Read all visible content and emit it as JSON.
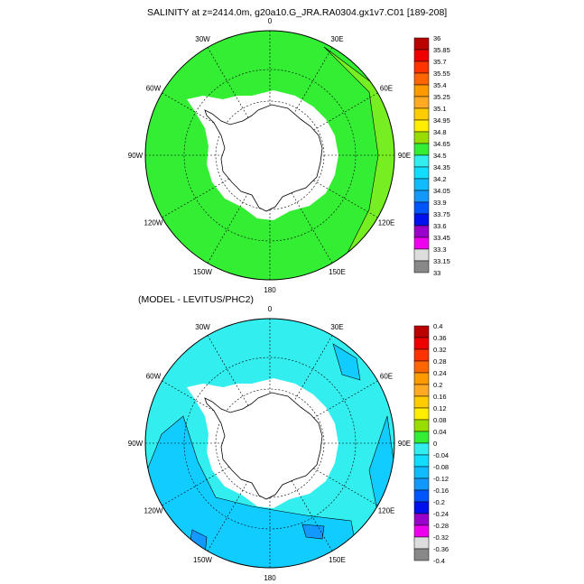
{
  "titles": {
    "top": "SALINITY at z=2414.0m, g20a10.G_JRA.RA0304.gx1v7.C01 [189-208]",
    "bottom": "(MODEL - LEVITUS/PHC2)"
  },
  "map_labels": [
    "0",
    "30E",
    "60E",
    "90E",
    "120E",
    "150E",
    "180",
    "150W",
    "120W",
    "90W",
    "60W",
    "30W"
  ],
  "colors": {
    "land": "#ffffff",
    "ocean_top": "#33ee33",
    "ocean_top_alt": "#77ee22",
    "ocean_bottom": "#33eeee",
    "ocean_bottom_alt": "#11ccff",
    "ocean_bottom_dark": "#1199ff"
  },
  "colorbar_top": {
    "colors": [
      "#bb0000",
      "#ee0000",
      "#ff3300",
      "#ff6600",
      "#ff9900",
      "#ffaa22",
      "#ffcc00",
      "#ffee00",
      "#99dd00",
      "#33ee33",
      "#33eeee",
      "#11ddff",
      "#11bbff",
      "#1199ff",
      "#0055ff",
      "#0011ee",
      "#9900cc",
      "#ee00ee",
      "#dddddd",
      "#888888"
    ],
    "labels": [
      "36",
      "35.85",
      "35.7",
      "35.55",
      "35.4",
      "35.25",
      "35.1",
      "34.95",
      "34.8",
      "34.65",
      "34.5",
      "34.35",
      "34.2",
      "34.05",
      "33.9",
      "33.75",
      "33.6",
      "33.45",
      "33.3",
      "33.15",
      "33"
    ]
  },
  "colorbar_bottom": {
    "colors": [
      "#bb0000",
      "#ee0000",
      "#ff3300",
      "#ff6600",
      "#ff9900",
      "#ffaa22",
      "#ffcc00",
      "#ffee00",
      "#99dd00",
      "#33ee33",
      "#33eeee",
      "#11ddff",
      "#11bbff",
      "#1199ff",
      "#0055ff",
      "#0011ee",
      "#9900cc",
      "#ee00ee",
      "#dddddd",
      "#888888"
    ],
    "labels": [
      "0.4",
      "0.36",
      "0.32",
      "0.28",
      "0.24",
      "0.2",
      "0.16",
      "0.12",
      "0.08",
      "0.04",
      "0",
      "-0.04",
      "-0.08",
      "-0.12",
      "-0.16",
      "-0.2",
      "-0.24",
      "-0.28",
      "-0.32",
      "-0.36",
      "-0.4"
    ]
  }
}
